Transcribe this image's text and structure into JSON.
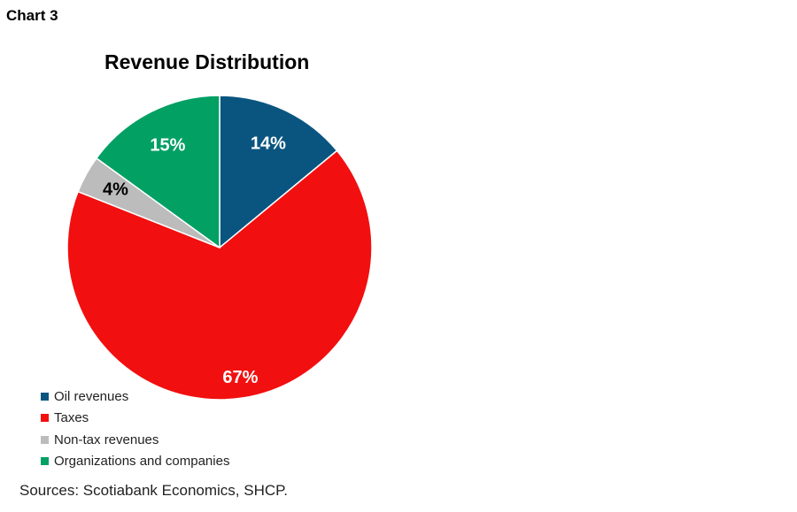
{
  "header": {
    "chart_label": "Chart 3"
  },
  "source": "Sources: Scotiabank Economics, SHCP.",
  "chart_data": {
    "type": "pie",
    "title": "Revenue Distribution",
    "legend_position": "bottom-left",
    "slices": [
      {
        "name": "Oil revenues",
        "value": 14,
        "label": "14%",
        "color": "#0a5580",
        "label_color": "#ffffff"
      },
      {
        "name": "Taxes",
        "value": 67,
        "label": "67%",
        "color": "#f20f0f",
        "label_color": "#ffffff"
      },
      {
        "name": "Non-tax revenues",
        "value": 4,
        "label": "4%",
        "color": "#bcbcbc",
        "label_color": "#000000"
      },
      {
        "name": "Organizations and companies",
        "value": 15,
        "label": "15%",
        "color": "#03a064",
        "label_color": "#ffffff"
      }
    ]
  }
}
